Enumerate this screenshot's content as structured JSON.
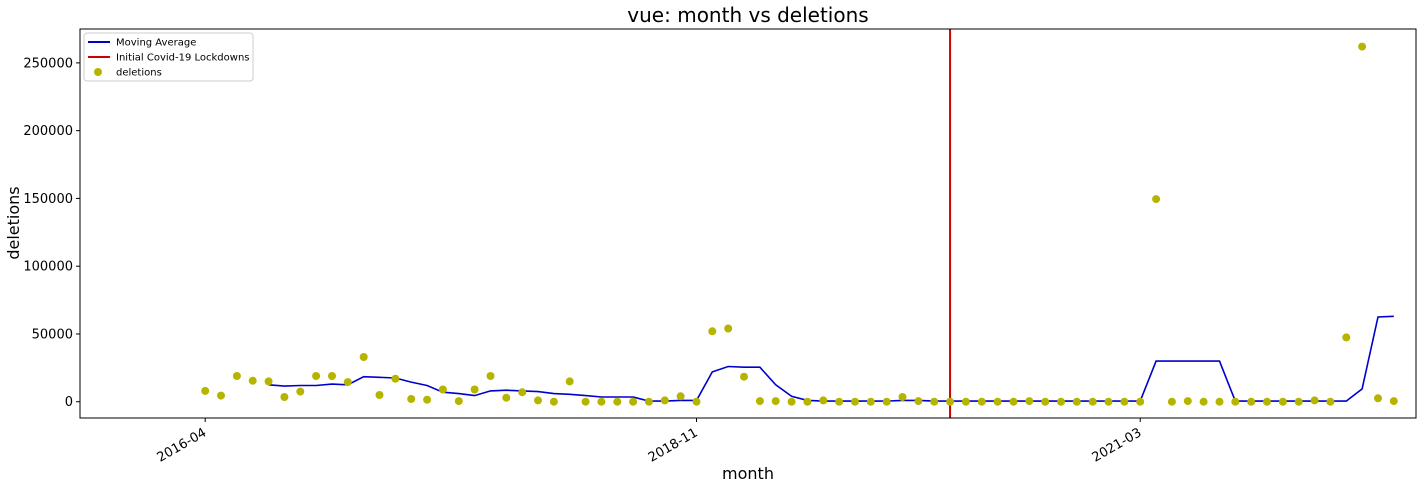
{
  "chart_data": {
    "type": "line",
    "title": "vue: month vs deletions",
    "xlabel": "month",
    "ylabel": "deletions",
    "ylim": [
      -12000,
      275000
    ],
    "xlim": [
      -7.9,
      76.4
    ],
    "y_ticks": [
      0,
      50000,
      100000,
      150000,
      200000,
      250000
    ],
    "x_ticks": [
      {
        "index": 0,
        "label": "2016-04"
      },
      {
        "index": 31,
        "label": "2018-11"
      },
      {
        "index": 59,
        "label": "2021-03"
      }
    ],
    "grid": false,
    "legend_position": "top-left",
    "colors": {
      "moving_average": "#0000cc",
      "covid_line": "#cc0000",
      "deletions": "#b5b500"
    },
    "legend": [
      {
        "label": "Moving Average",
        "kind": "line",
        "color": "#0000cc"
      },
      {
        "label": "Initial Covid-19 Lockdowns",
        "kind": "line",
        "color": "#cc0000"
      },
      {
        "label": "deletions",
        "kind": "marker",
        "color": "#b5b500"
      }
    ],
    "covid_line_index": 47,
    "series": [
      {
        "name": "deletions",
        "type": "scatter",
        "x": [
          0,
          1,
          2,
          3,
          4,
          5,
          6,
          7,
          8,
          9,
          10,
          11,
          12,
          13,
          14,
          15,
          16,
          17,
          18,
          19,
          20,
          21,
          22,
          23,
          24,
          25,
          26,
          27,
          28,
          29,
          30,
          31,
          32,
          33,
          34,
          35,
          36,
          37,
          38,
          39,
          40,
          41,
          42,
          43,
          44,
          45,
          46,
          47,
          48,
          49,
          50,
          51,
          52,
          53,
          54,
          55,
          56,
          57,
          58,
          59,
          60,
          61,
          62,
          63,
          64,
          65,
          66,
          67,
          68,
          69,
          70,
          71,
          72,
          73,
          74,
          75
        ],
        "values": [
          8000,
          4500,
          19000,
          15500,
          15000,
          3500,
          7500,
          19000,
          19000,
          14500,
          33000,
          5000,
          17000,
          2000,
          1500,
          9000,
          500,
          9000,
          19000,
          3000,
          7000,
          1000,
          0,
          15000,
          0,
          0,
          0,
          0,
          0,
          1000,
          4000,
          0,
          52000,
          54000,
          18500,
          500,
          500,
          0,
          0,
          1000,
          0,
          0,
          0,
          0,
          3500,
          500,
          0,
          0,
          0,
          0,
          0,
          0,
          500,
          0,
          0,
          0,
          0,
          0,
          0,
          0,
          149500,
          0,
          500,
          0,
          0,
          0,
          0,
          0,
          0,
          0,
          1000,
          0,
          47500,
          262000,
          2500,
          500
        ]
      },
      {
        "name": "Moving Average",
        "type": "line",
        "x": [
          4,
          5,
          6,
          7,
          8,
          9,
          10,
          11,
          12,
          13,
          14,
          15,
          16,
          17,
          18,
          19,
          20,
          21,
          22,
          23,
          24,
          25,
          26,
          27,
          28,
          29,
          30,
          31,
          32,
          33,
          34,
          35,
          36,
          37,
          38,
          39,
          40,
          41,
          42,
          43,
          44,
          45,
          46,
          47,
          48,
          49,
          50,
          51,
          52,
          53,
          54,
          55,
          56,
          57,
          58,
          59,
          60,
          61,
          62,
          63,
          64,
          65,
          66,
          67,
          68,
          69,
          70,
          71,
          72,
          73,
          74,
          75
        ],
        "values": [
          12500,
          11500,
          12000,
          12000,
          13000,
          12500,
          18500,
          18000,
          17500,
          14500,
          12000,
          7000,
          6000,
          4500,
          8000,
          8500,
          8000,
          7500,
          6000,
          5500,
          4500,
          3500,
          3500,
          3500,
          500,
          500,
          1000,
          1000,
          22000,
          26000,
          25500,
          25500,
          12500,
          4000,
          1000,
          500,
          500,
          500,
          500,
          500,
          1000,
          1000,
          500,
          500,
          500,
          500,
          500,
          500,
          500,
          500,
          500,
          500,
          500,
          500,
          500,
          500,
          30000,
          30000,
          30000,
          30000,
          30000,
          500,
          500,
          500,
          500,
          500,
          500,
          500,
          500,
          9500,
          62500,
          63000
        ]
      }
    ]
  }
}
